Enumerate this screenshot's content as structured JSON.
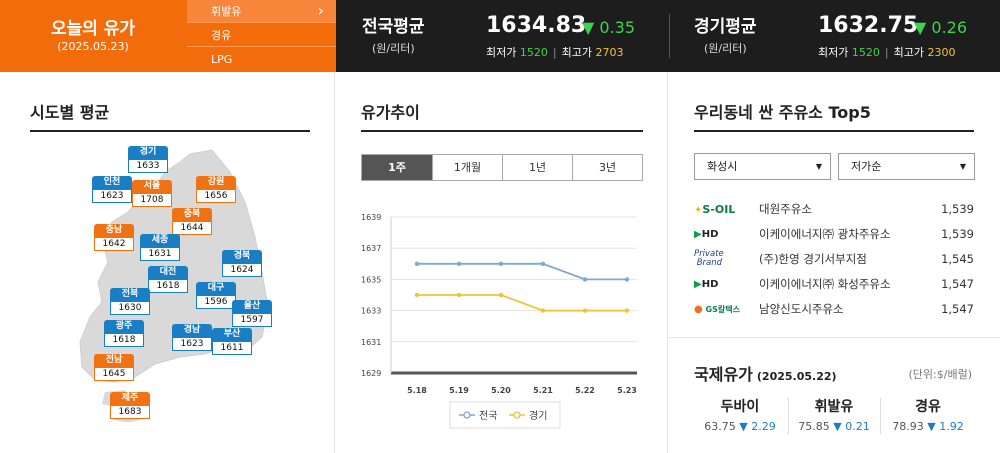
{
  "today": {
    "title": "오늘의 유가",
    "date": "(2025.05.23)"
  },
  "fuel_tabs": [
    {
      "label": "휘발유",
      "selected": true
    },
    {
      "label": "경유",
      "selected": false
    },
    {
      "label": "LPG",
      "selected": false
    }
  ],
  "national": {
    "title": "전국평균",
    "unit": "(원/리터)",
    "price": "1634.83",
    "change": "▼ 0.35",
    "min_label": "최저가",
    "min": "1520",
    "max_label": "최고가",
    "max": "2703"
  },
  "gyeonggi": {
    "title": "경기평균",
    "unit": "(원/리터)",
    "price": "1632.75",
    "change": "▼ 0.26",
    "min_label": "최저가",
    "min": "1520",
    "max_label": "최고가",
    "max": "2300"
  },
  "region_panel": {
    "title": "시도별 평균",
    "regions": [
      {
        "name": "경기",
        "price": "1633",
        "color": "blue"
      },
      {
        "name": "인천",
        "price": "1623",
        "color": "blue"
      },
      {
        "name": "서울",
        "price": "1708",
        "color": "orange"
      },
      {
        "name": "강원",
        "price": "1656",
        "color": "orange"
      },
      {
        "name": "충북",
        "price": "1644",
        "color": "orange"
      },
      {
        "name": "충남",
        "price": "1642",
        "color": "orange"
      },
      {
        "name": "세종",
        "price": "1631",
        "color": "blue"
      },
      {
        "name": "경북",
        "price": "1624",
        "color": "blue"
      },
      {
        "name": "대전",
        "price": "1618",
        "color": "blue"
      },
      {
        "name": "전북",
        "price": "1630",
        "color": "blue"
      },
      {
        "name": "대구",
        "price": "1596",
        "color": "blue"
      },
      {
        "name": "울산",
        "price": "1597",
        "color": "blue"
      },
      {
        "name": "광주",
        "price": "1618",
        "color": "blue"
      },
      {
        "name": "경남",
        "price": "1623",
        "color": "blue"
      },
      {
        "name": "부산",
        "price": "1611",
        "color": "blue"
      },
      {
        "name": "전남",
        "price": "1645",
        "color": "orange"
      },
      {
        "name": "제주",
        "price": "1683",
        "color": "orange"
      }
    ]
  },
  "trend_panel": {
    "title": "유가추이",
    "periods": [
      {
        "label": "1주",
        "selected": true
      },
      {
        "label": "1개월",
        "selected": false
      },
      {
        "label": "1년",
        "selected": false
      },
      {
        "label": "3년",
        "selected": false
      }
    ]
  },
  "chart_data": {
    "type": "line",
    "x": [
      "5.18",
      "5.19",
      "5.20",
      "5.21",
      "5.22",
      "5.23"
    ],
    "ylim": [
      1629,
      1639
    ],
    "yticks": [
      "1639",
      "1637",
      "1635",
      "1633",
      "1631",
      "1629"
    ],
    "series": [
      {
        "name": "전국",
        "color": "#7fa7cf",
        "values": [
          1636,
          1636,
          1636,
          1636,
          1635,
          1635
        ]
      },
      {
        "name": "경기",
        "color": "#f0c235",
        "values": [
          1634,
          1634,
          1634,
          1633,
          1633,
          1633
        ]
      }
    ],
    "grid": true,
    "legend": "bottom"
  },
  "top5_panel": {
    "title": "우리동네 싼 주유소 Top5",
    "city_select": "화성시",
    "sort_select": "저가순",
    "stations": [
      {
        "brand": "S-OIL",
        "name": "대원주유소",
        "price": "1,539"
      },
      {
        "brand": "HD",
        "name": "이케이에너지㈜ 광차주유소",
        "price": "1,539"
      },
      {
        "brand": "Private Brand",
        "name": "(주)한영 경기서부지점",
        "price": "1,545"
      },
      {
        "brand": "HD",
        "name": "이케이에너지㈜ 화성주유소",
        "price": "1,547"
      },
      {
        "brand": "GS칼텍스",
        "name": "남양신도시주유소",
        "price": "1,547"
      }
    ]
  },
  "intl_panel": {
    "title": "국제유가",
    "date": "(2025.05.22)",
    "unit": "(단위:$/배럴)",
    "items": [
      {
        "name": "두바이",
        "value": "63.75",
        "change": "▼ 2.29"
      },
      {
        "name": "휘발유",
        "value": "75.85",
        "change": "▼ 0.21"
      },
      {
        "name": "경유",
        "value": "78.93",
        "change": "▼ 1.92"
      }
    ]
  }
}
